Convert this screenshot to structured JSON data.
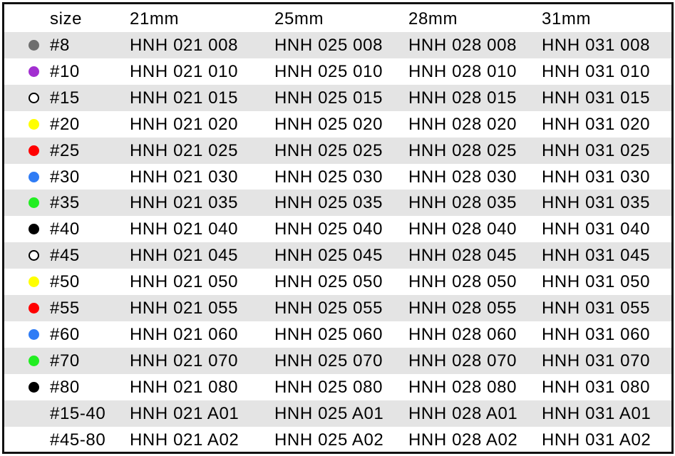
{
  "header": {
    "size": "size",
    "cols": [
      "21mm",
      "25mm",
      "28mm",
      "31mm"
    ]
  },
  "rows": [
    {
      "size": "#8",
      "dot": "#6e6e6e",
      "codes": [
        "HNH 021 008",
        "HNH 025 008",
        "HNH 028 008",
        "HNH 031 008"
      ]
    },
    {
      "size": "#10",
      "dot": "#a22fd0",
      "codes": [
        "HNH 021 010",
        "HNH 025 010",
        "HNH 028 010",
        "HNH 031 010"
      ]
    },
    {
      "size": "#15",
      "dot": "#ffffff",
      "codes": [
        "HNH 021 015",
        "HNH 025 015",
        "HNH 028 015",
        "HNH 031 015"
      ]
    },
    {
      "size": "#20",
      "dot": "#ffff00",
      "codes": [
        "HNH 021 020",
        "HNH 025 020",
        "HNH 028 020",
        "HNH 031 020"
      ]
    },
    {
      "size": "#25",
      "dot": "#ff0000",
      "codes": [
        "HNH 021 025",
        "HNH 025 025",
        "HNH 028 025",
        "HNH 031 025"
      ]
    },
    {
      "size": "#30",
      "dot": "#2f7cf5",
      "codes": [
        "HNH 021 030",
        "HNH 025 030",
        "HNH 028 030",
        "HNH 031 030"
      ]
    },
    {
      "size": "#35",
      "dot": "#22ee22",
      "codes": [
        "HNH 021 035",
        "HNH 025 035",
        "HNH 028 035",
        "HNH 031 035"
      ]
    },
    {
      "size": "#40",
      "dot": "#000000",
      "codes": [
        "HNH 021 040",
        "HNH 025 040",
        "HNH 028 040",
        "HNH 031 040"
      ]
    },
    {
      "size": "#45",
      "dot": "#ffffff",
      "codes": [
        "HNH 021 045",
        "HNH 025 045",
        "HNH 028 045",
        "HNH 031 045"
      ]
    },
    {
      "size": "#50",
      "dot": "#ffff00",
      "codes": [
        "HNH 021 050",
        "HNH 025 050",
        "HNH 028 050",
        "HNH 031 050"
      ]
    },
    {
      "size": "#55",
      "dot": "#ff0000",
      "codes": [
        "HNH 021 055",
        "HNH 025 055",
        "HNH 028 055",
        "HNH 031 055"
      ]
    },
    {
      "size": "#60",
      "dot": "#2f7cf5",
      "codes": [
        "HNH 021 060",
        "HNH 025 060",
        "HNH 028 060",
        "HNH 031 060"
      ]
    },
    {
      "size": "#70",
      "dot": "#22ee22",
      "codes": [
        "HNH 021 070",
        "HNH 025 070",
        "HNH 028 070",
        "HNH 031 070"
      ]
    },
    {
      "size": "#80",
      "dot": "#000000",
      "codes": [
        "HNH 021 080",
        "HNH 025 080",
        "HNH 028 080",
        "HNH 031 080"
      ]
    },
    {
      "size": "#15-40",
      "dot": null,
      "codes": [
        "HNH 021 A01",
        "HNH 025 A01",
        "HNH 028 A01",
        "HNH 031 A01"
      ]
    },
    {
      "size": "#45-80",
      "dot": null,
      "codes": [
        "HNH 021 A02",
        "HNH 025 A02",
        "HNH 028 A02",
        "HNH 031 A02"
      ]
    }
  ]
}
